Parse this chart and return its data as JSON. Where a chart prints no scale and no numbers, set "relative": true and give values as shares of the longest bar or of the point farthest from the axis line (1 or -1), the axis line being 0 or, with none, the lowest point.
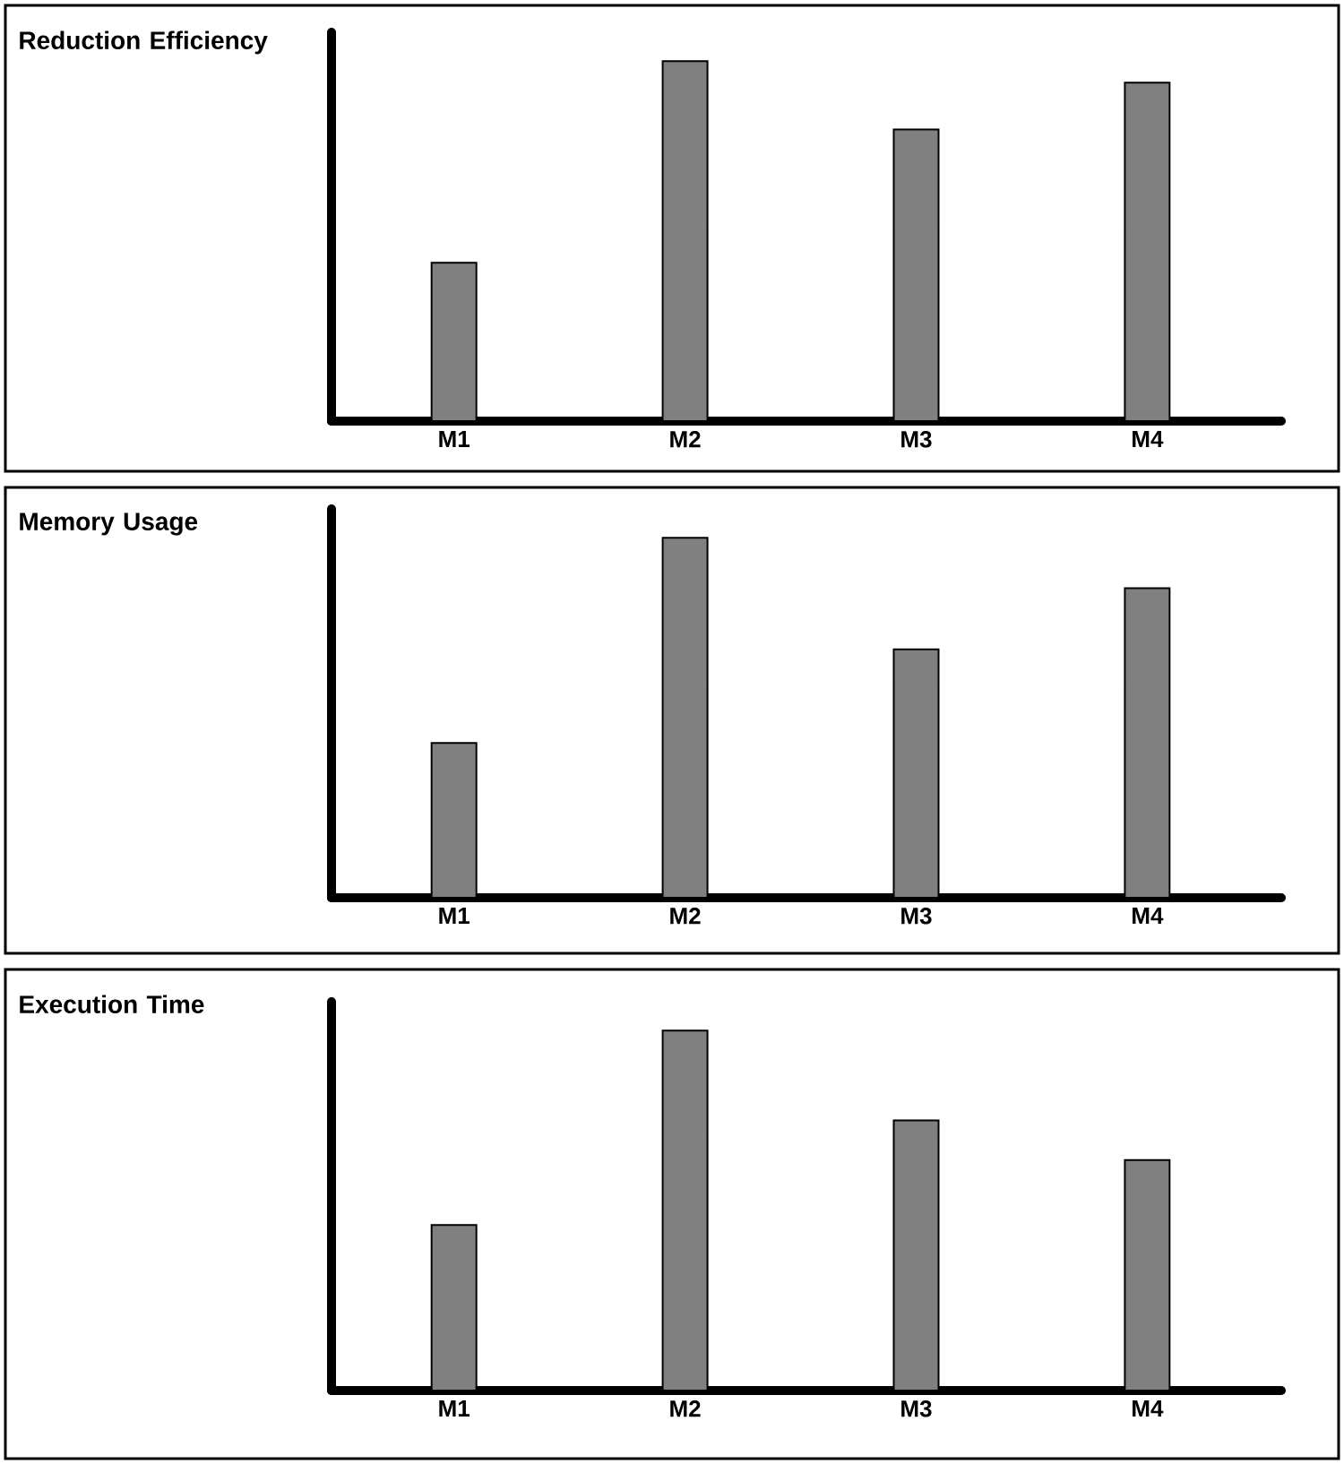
{
  "chart_data": [
    {
      "type": "bar",
      "title": "Reduction Efficiency",
      "categories": [
        "M1",
        "M2",
        "M3",
        "M4"
      ],
      "values": [
        0.44,
        1,
        0.81,
        0.94
      ],
      "color": "#808080",
      "relative": true
    },
    {
      "type": "bar",
      "title": "Memory Usage",
      "categories": [
        "M1",
        "M2",
        "M3",
        "M4"
      ],
      "values": [
        0.43,
        1,
        0.69,
        0.86
      ],
      "color": "#808080",
      "relative": true
    },
    {
      "type": "bar",
      "title": "Execution Time",
      "categories": [
        "M1",
        "M2",
        "M3",
        "M4"
      ],
      "values": [
        0.46,
        1,
        0.75,
        0.64
      ],
      "color": "#808080",
      "relative": true
    }
  ]
}
